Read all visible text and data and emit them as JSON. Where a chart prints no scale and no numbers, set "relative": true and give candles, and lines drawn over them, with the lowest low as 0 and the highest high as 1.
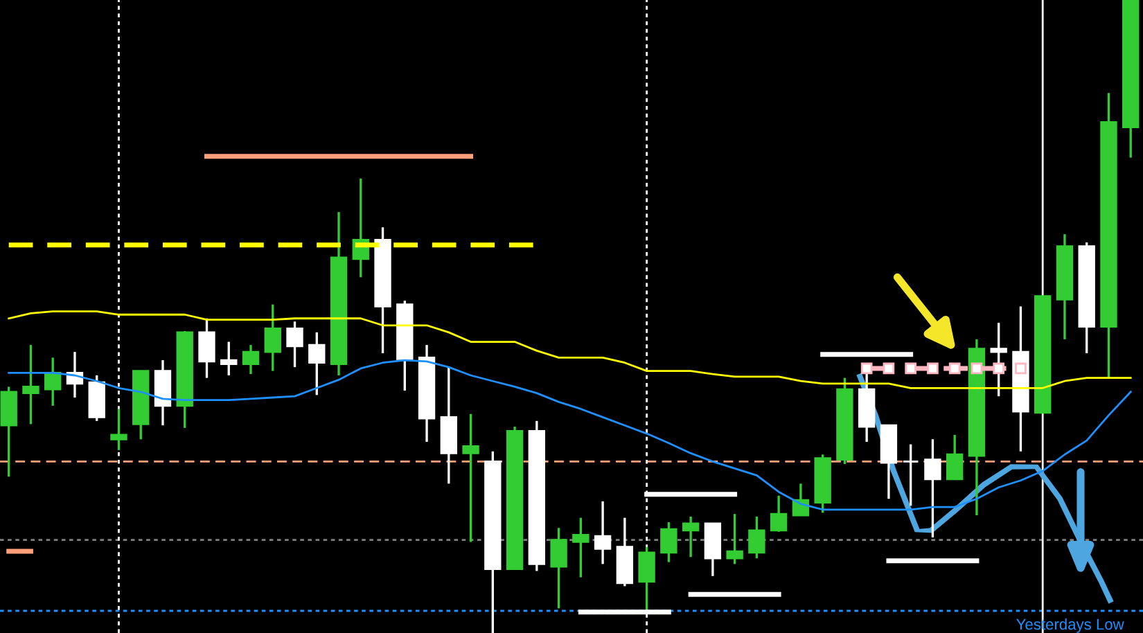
{
  "chart_data": {
    "type": "candlestick",
    "relative": true,
    "categories": [
      null,
      null,
      null,
      null,
      null,
      null,
      null,
      null,
      null,
      null,
      null,
      null,
      null,
      null,
      null,
      null,
      null,
      null,
      null,
      null,
      null,
      null,
      null,
      null,
      null,
      null,
      null,
      null,
      null,
      null,
      null,
      null,
      null,
      null,
      null,
      null,
      null,
      null,
      null,
      null,
      null,
      null,
      null,
      null,
      null,
      null,
      null,
      null,
      null,
      null,
      null,
      null
    ],
    "ohlc": [
      [
        0.328,
        0.389,
        0.247,
        0.381
      ],
      [
        0.379,
        0.455,
        0.33,
        0.389
      ],
      [
        0.385,
        0.435,
        0.359,
        0.411
      ],
      [
        0.411,
        0.444,
        0.372,
        0.394
      ],
      [
        0.396,
        0.407,
        0.335,
        0.341
      ],
      [
        0.306,
        0.354,
        0.289,
        0.313
      ],
      [
        0.33,
        0.414,
        0.306,
        0.414
      ],
      [
        0.414,
        0.431,
        0.328,
        0.359
      ],
      [
        0.359,
        0.477,
        0.324,
        0.475
      ],
      [
        0.475,
        0.497,
        0.403,
        0.429
      ],
      [
        0.431,
        0.46,
        0.407,
        0.425
      ],
      [
        0.425,
        0.455,
        0.409,
        0.444
      ],
      [
        0.444,
        0.519,
        0.414,
        0.481
      ],
      [
        0.481,
        0.492,
        0.42,
        0.453
      ],
      [
        0.455,
        0.475,
        0.376,
        0.427
      ],
      [
        0.425,
        0.665,
        0.407,
        0.593
      ],
      [
        0.591,
        0.718,
        0.562,
        0.621
      ],
      [
        0.621,
        0.641,
        0.442,
        0.516
      ],
      [
        0.519,
        0.525,
        0.383,
        0.433
      ],
      [
        0.435,
        0.455,
        0.302,
        0.339
      ],
      [
        0.341,
        0.42,
        0.236,
        0.284
      ],
      [
        0.284,
        0.346,
        0.144,
        0.295
      ],
      [
        0.271,
        0.287,
        0,
        0.101
      ],
      [
        0.101,
        0.326,
        0.101,
        0.319
      ],
      [
        0.319,
        0.335,
        0.098,
        0.109
      ],
      [
        0.105,
        0.166,
        0.039,
        0.147
      ],
      [
        0.144,
        0.182,
        0.088,
        0.155
      ],
      [
        0.153,
        0.208,
        0.109,
        0.133
      ],
      [
        0.136,
        0.182,
        0.074,
        0.079
      ],
      [
        0.081,
        0.136,
        0.035,
        0.127
      ],
      [
        0.127,
        0.175,
        0.112,
        0.164
      ],
      [
        0.162,
        0.184,
        0.12,
        0.173
      ],
      [
        0.173,
        0.173,
        0.09,
        0.118
      ],
      [
        0.118,
        0.188,
        0.109,
        0.129
      ],
      [
        0.127,
        0.184,
        0.118,
        0.162
      ],
      [
        0.162,
        0.217,
        0.16,
        0.188
      ],
      [
        0.186,
        0.236,
        0.186,
        0.21
      ],
      [
        0.206,
        0.282,
        0.19,
        0.276
      ],
      [
        0.274,
        0.403,
        0.267,
        0.385
      ],
      [
        0.385,
        0.416,
        0.302,
        0.326
      ],
      [
        0.328,
        0.328,
        0.212,
        0.269
      ],
      [
        0.271,
        0.298,
        0.201,
        0.271
      ],
      [
        0.274,
        0.306,
        0.151,
        0.243
      ],
      [
        0.243,
        0.313,
        0.243,
        0.282
      ],
      [
        0.28,
        0.464,
        0.186,
        0.449
      ],
      [
        0.449,
        0.49,
        0.374,
        0.444
      ],
      [
        0.444,
        0.516,
        0.287,
        0.35
      ],
      [
        0.348,
        0.532,
        0.348,
        0.532
      ],
      [
        0.527,
        0.63,
        0.464,
        0.611
      ],
      [
        0.611,
        0.617,
        0.442,
        0.484
      ],
      [
        0.484,
        0.853,
        0.403,
        0.807
      ],
      [
        0.799,
        1,
        0.751,
        1
      ]
    ],
    "colors": [
      "#33cc33",
      "#33cc33",
      "#33cc33",
      "#ffffff",
      "#ffffff",
      "#33cc33",
      "#33cc33",
      "#ffffff",
      "#33cc33",
      "#ffffff",
      "#ffffff",
      "#33cc33",
      "#33cc33",
      "#ffffff",
      "#ffffff",
      "#33cc33",
      "#33cc33",
      "#ffffff",
      "#ffffff",
      "#ffffff",
      "#ffffff",
      "#33cc33",
      "#ffffff",
      "#33cc33",
      "#ffffff",
      "#33cc33",
      "#33cc33",
      "#ffffff",
      "#ffffff",
      "#33cc33",
      "#33cc33",
      "#33cc33",
      "#ffffff",
      "#33cc33",
      "#33cc33",
      "#33cc33",
      "#33cc33",
      "#33cc33",
      "#33cc33",
      "#ffffff",
      "#ffffff",
      "#ffffff",
      "#ffffff",
      "#33cc33",
      "#33cc33",
      "#ffffff",
      "#ffffff",
      "#33cc33",
      "#33cc33",
      "#ffffff",
      "#33cc33",
      "#33cc33"
    ],
    "series": [
      {
        "type": "line",
        "color": "#ffff00",
        "values": [
          0.497,
          0.505,
          0.508,
          0.508,
          0.508,
          0.503,
          0.503,
          0.503,
          0.503,
          0.495,
          0.495,
          0.495,
          0.495,
          0.497,
          0.497,
          0.497,
          0.497,
          0.486,
          0.486,
          0.486,
          0.475,
          0.46,
          0.46,
          0.46,
          0.446,
          0.435,
          0.435,
          0.435,
          0.427,
          0.414,
          0.414,
          0.414,
          0.409,
          0.405,
          0.405,
          0.405,
          0.398,
          0.394,
          0.394,
          0.394,
          0.394,
          0.387,
          0.387,
          0.387,
          0.387,
          0.387,
          0.387,
          0.387,
          0.398,
          0.403,
          0.403,
          0.403
        ]
      },
      {
        "type": "line",
        "color": "#1e90ff",
        "values": [
          0.411,
          0.411,
          0.411,
          0.407,
          0.398,
          0.387,
          0.381,
          0.37,
          0.368,
          0.368,
          0.368,
          0.37,
          0.372,
          0.374,
          0.387,
          0.4,
          0.418,
          0.427,
          0.431,
          0.429,
          0.42,
          0.407,
          0.398,
          0.389,
          0.379,
          0.365,
          0.354,
          0.341,
          0.328,
          0.315,
          0.3,
          0.284,
          0.271,
          0.26,
          0.249,
          0.223,
          0.204,
          0.195,
          0.195,
          0.195,
          0.195,
          0.195,
          0.199,
          0.199,
          0.212,
          0.23,
          0.241,
          0.256,
          0.282,
          0.304,
          0.344,
          0.381
        ]
      },
      {
        "type": "line",
        "color": "#ffff00",
        "line_style": "dashed",
        "values": [
          0.613,
          0.613,
          0.613,
          0.613,
          0.613,
          0.613,
          0.613,
          0.613,
          0.613,
          0.613,
          0.613,
          0.613,
          0.613,
          0.613,
          0.613,
          0.613,
          0.613,
          0.613,
          0.613,
          0.613,
          0.613,
          0.613,
          0.613,
          0.613,
          0.613,
          null,
          null,
          null,
          null,
          null,
          null,
          null,
          null,
          null,
          null,
          null,
          null,
          null,
          null,
          null,
          null,
          null,
          null,
          null,
          null,
          null,
          null,
          null,
          null,
          null,
          null,
          null
        ]
      },
      {
        "type": "line",
        "color": "#ffa07a",
        "values": [
          null,
          null,
          null,
          null,
          null,
          null,
          null,
          null,
          null,
          0.753,
          0.753,
          0.753,
          0.753,
          0.753,
          0.753,
          0.753,
          0.753,
          0.753,
          0.753,
          0.753,
          0.753,
          0.753,
          null,
          null,
          null,
          null,
          null,
          null,
          null,
          null,
          null,
          null,
          null,
          null,
          null,
          null,
          null,
          null,
          null,
          null,
          null,
          null,
          null,
          null,
          null,
          null,
          null,
          null,
          null,
          null,
          null,
          null
        ]
      },
      {
        "type": "line",
        "color": "#ffa07a",
        "values": [
          0.129,
          0.129,
          null,
          null,
          null,
          null,
          null,
          null,
          null,
          null,
          null,
          null,
          null,
          null,
          null,
          null,
          null,
          null,
          null,
          null,
          null,
          null,
          null,
          null,
          null,
          null,
          null,
          null,
          null,
          null,
          null,
          null,
          null,
          null,
          null,
          null,
          null,
          null,
          null,
          null,
          null,
          null,
          null,
          null,
          null,
          null,
          null,
          null,
          null,
          null,
          null,
          null
        ]
      },
      {
        "type": "line",
        "color": "#ffffff",
        "values": [
          null,
          null,
          null,
          null,
          null,
          null,
          null,
          null,
          null,
          null,
          null,
          null,
          null,
          null,
          null,
          null,
          null,
          null,
          null,
          null,
          null,
          null,
          null,
          null,
          null,
          null,
          null,
          null,
          null,
          null,
          null,
          null,
          null,
          null,
          null,
          null,
          null,
          0.44,
          0.44,
          0.44,
          0.44,
          0.44,
          null,
          null,
          null,
          null,
          null,
          null,
          null,
          null,
          null,
          null
        ]
      },
      {
        "type": "line",
        "color": "#ffffff",
        "values": [
          null,
          null,
          null,
          null,
          null,
          null,
          null,
          null,
          null,
          null,
          null,
          null,
          null,
          null,
          null,
          null,
          null,
          null,
          null,
          null,
          null,
          null,
          null,
          null,
          null,
          null,
          null,
          null,
          null,
          0.219,
          0.219,
          0.219,
          0.219,
          0.219,
          null,
          null,
          null,
          null,
          null,
          null,
          null,
          null,
          null,
          null,
          null,
          null,
          null,
          null,
          null,
          null,
          null,
          null
        ]
      },
      {
        "type": "line",
        "color": "#ffffff",
        "values": [
          null,
          null,
          null,
          null,
          null,
          null,
          null,
          null,
          null,
          null,
          null,
          null,
          null,
          null,
          null,
          null,
          null,
          null,
          null,
          null,
          null,
          null,
          null,
          null,
          null,
          null,
          null,
          null,
          null,
          null,
          null,
          0.061,
          0.061,
          0.061,
          0.061,
          0.061,
          null,
          null,
          null,
          null,
          null,
          null,
          null,
          null,
          null,
          null,
          null,
          null,
          null,
          null,
          null,
          null
        ]
      },
      {
        "type": "line",
        "color": "#ffffff",
        "values": [
          null,
          null,
          null,
          null,
          null,
          null,
          null,
          null,
          null,
          null,
          null,
          null,
          null,
          null,
          null,
          null,
          null,
          null,
          null,
          null,
          null,
          null,
          null,
          null,
          null,
          null,
          0.033,
          0.033,
          0.033,
          0.033,
          0.033,
          null,
          null,
          null,
          null,
          null,
          null,
          null,
          null,
          null,
          null,
          null,
          null,
          null,
          null,
          null,
          null,
          null,
          null,
          null,
          null,
          null
        ]
      },
      {
        "type": "line",
        "color": "#ffffff",
        "values": [
          null,
          null,
          null,
          null,
          null,
          null,
          null,
          null,
          null,
          null,
          null,
          null,
          null,
          null,
          null,
          null,
          null,
          null,
          null,
          null,
          null,
          null,
          null,
          null,
          null,
          null,
          null,
          null,
          null,
          null,
          null,
          null,
          null,
          null,
          null,
          null,
          null,
          null,
          null,
          null,
          0.114,
          0.114,
          0.114,
          0.114,
          0.114,
          null,
          null,
          null,
          null,
          null,
          null,
          null
        ]
      },
      {
        "type": "line",
        "color": "#ffb6c1",
        "line_style": "dashed",
        "marker": "square",
        "values": [
          null,
          null,
          null,
          null,
          null,
          null,
          null,
          null,
          null,
          null,
          null,
          null,
          null,
          null,
          null,
          null,
          null,
          null,
          null,
          null,
          null,
          null,
          null,
          null,
          null,
          null,
          null,
          null,
          null,
          null,
          null,
          null,
          null,
          null,
          null,
          null,
          null,
          null,
          null,
          0.418,
          0.418,
          0.418,
          0.418,
          0.418,
          0.418,
          0.418,
          0.418,
          null,
          null,
          null,
          null,
          null
        ]
      }
    ],
    "ref_lines": [
      {
        "axis": "y",
        "value": 0.271,
        "color": "#ffa07a",
        "line_style": "dashed"
      },
      {
        "axis": "y",
        "value": 0.147,
        "color": "#808080",
        "line_style": "dotted"
      },
      {
        "axis": "y",
        "value": 0.035,
        "color": "#1e90ff",
        "line_style": "dotted",
        "label": "Yesterdays Low"
      }
    ]
  }
}
